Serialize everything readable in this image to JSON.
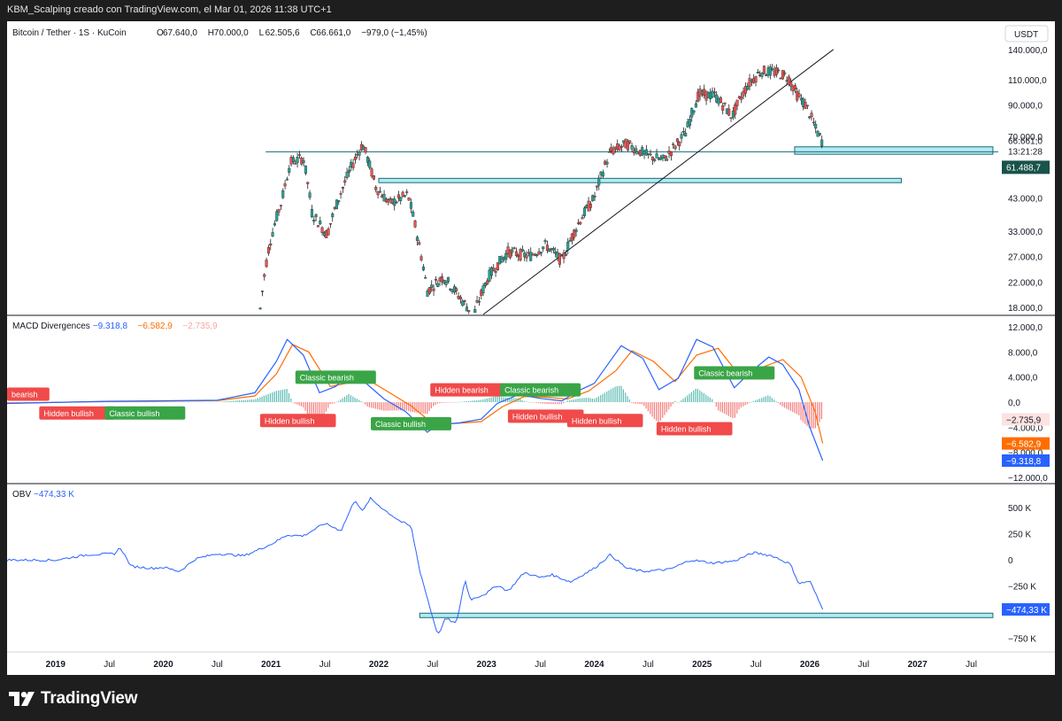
{
  "window": {
    "caption": "KBM_Scalping creado con TradingView.com, el Mar 01, 2026 11:38 UTC+1",
    "brand": "TradingView"
  },
  "colors": {
    "up_candle": "#26a69a",
    "down_candle": "#ef5350",
    "macd_line": "#2962ff",
    "signal_line": "#ff6d00",
    "hist_up": "#26a69a",
    "hist_down": "#ef5350",
    "obv_line": "#2962ff",
    "zone_fill": "#b2ebf2",
    "zone_border": "#1a6b78",
    "label_red": "#f04a4a",
    "label_green": "#3aa547",
    "last_price_tag": "#19534a"
  },
  "chart_data": [
    {
      "type": "candlestick",
      "pane": "price",
      "title": "Bitcoin / Tether · 1S · KuCoin",
      "ohlc_labels": [
        "O",
        "H",
        "L",
        "C"
      ],
      "ohlc_values": [
        "67.640,0",
        "70.000,0",
        "62.505,6",
        "66.661,0"
      ],
      "change": "−979,0 (−1,45%)",
      "currency_button": "USDT",
      "y_scale": "log",
      "ylim": [
        17000,
        150000
      ],
      "y_ticks": [
        140000,
        110000,
        90000,
        70000,
        43000,
        33000,
        27000,
        22000,
        18000
      ],
      "y_tick_labels": [
        "140.000,0",
        "110.000,0",
        "90.000,0",
        "70.000,0",
        "43.000,0",
        "33.000,0",
        "27.000,0",
        "22.000,0",
        "18.000,0"
      ],
      "x_range": [
        2018.55,
        2027.75
      ],
      "x_tick_labels": [
        "2019",
        "Jul",
        "2020",
        "Jul",
        "2021",
        "Jul",
        "2022",
        "Jul",
        "2023",
        "Jul",
        "2024",
        "Jul",
        "2025",
        "Jul",
        "2026",
        "Jul",
        "2027",
        "Jul"
      ],
      "x_ticks": [
        2019.0,
        2019.5,
        2020.0,
        2020.5,
        2021.0,
        2021.5,
        2022.0,
        2022.5,
        2023.0,
        2023.5,
        2024.0,
        2024.5,
        2025.0,
        2025.5,
        2026.0,
        2026.5,
        2027.0,
        2027.5
      ],
      "last_price": "66.661,0",
      "countdown": "13:21:28",
      "marker_price": "61.488,7",
      "price_path": [
        [
          2020.9,
          17800
        ],
        [
          2020.98,
          29000
        ],
        [
          2021.1,
          42000
        ],
        [
          2021.18,
          57000
        ],
        [
          2021.3,
          59000
        ],
        [
          2021.38,
          38000
        ],
        [
          2021.52,
          32000
        ],
        [
          2021.68,
          48000
        ],
        [
          2021.85,
          66000
        ],
        [
          2021.97,
          47000
        ],
        [
          2022.1,
          41000
        ],
        [
          2022.27,
          44000
        ],
        [
          2022.37,
          30000
        ],
        [
          2022.45,
          20500
        ],
        [
          2022.6,
          23000
        ],
        [
          2022.75,
          19500
        ],
        [
          2022.88,
          16800
        ],
        [
          2023.02,
          23000
        ],
        [
          2023.2,
          28000
        ],
        [
          2023.4,
          27000
        ],
        [
          2023.55,
          29500
        ],
        [
          2023.7,
          26000
        ],
        [
          2023.85,
          35000
        ],
        [
          2024.0,
          43000
        ],
        [
          2024.15,
          62000
        ],
        [
          2024.3,
          66000
        ],
        [
          2024.5,
          60000
        ],
        [
          2024.65,
          58000
        ],
        [
          2024.85,
          72000
        ],
        [
          2024.97,
          98000
        ],
        [
          2025.12,
          97000
        ],
        [
          2025.28,
          82000
        ],
        [
          2025.42,
          105000
        ],
        [
          2025.55,
          118000
        ],
        [
          2025.72,
          116000
        ],
        [
          2025.8,
          112000
        ],
        [
          2025.88,
          98000
        ],
        [
          2025.97,
          89000
        ],
        [
          2026.05,
          75000
        ],
        [
          2026.12,
          66661
        ]
      ],
      "trendline": [
        [
          2022.97,
          17000
        ],
        [
          2026.22,
          140000
        ]
      ],
      "horizontal_line": 62000,
      "zones": [
        {
          "x0": 2025.86,
          "x1": 2027.7,
          "y0": 60800,
          "y1": 64500
        },
        {
          "x0": 2022.0,
          "x1": 2026.85,
          "y0": 48500,
          "y1": 50200
        }
      ]
    },
    {
      "type": "line",
      "pane": "macd",
      "title": "MACD Divergences",
      "legend_values": [
        "−9.318,8",
        "−6.582,9",
        "−2.735,9"
      ],
      "ylim": [
        -12000,
        13000
      ],
      "y_ticks": [
        12000,
        8000,
        4000,
        0,
        -4000,
        -8000,
        -12000
      ],
      "y_tick_labels": [
        "12.000,0",
        "8.000,0",
        "4.000,0",
        "0,0",
        "−4.000,0",
        "−8.000,0",
        "−12.000,0"
      ],
      "series": [
        {
          "name": "MACD",
          "last": "−9.318,8",
          "points": [
            [
              2018.55,
              -200
            ],
            [
              2019.5,
              150
            ],
            [
              2019.9,
              200
            ],
            [
              2020.5,
              300
            ],
            [
              2020.85,
              1500
            ],
            [
              2021.05,
              6500
            ],
            [
              2021.15,
              10000
            ],
            [
              2021.3,
              7500
            ],
            [
              2021.45,
              1500
            ],
            [
              2021.6,
              2500
            ],
            [
              2021.72,
              4500
            ],
            [
              2021.85,
              3500
            ],
            [
              2022.05,
              500
            ],
            [
              2022.25,
              -1500
            ],
            [
              2022.45,
              -4800
            ],
            [
              2022.55,
              -3600
            ],
            [
              2022.75,
              -3300
            ],
            [
              2022.95,
              -2700
            ],
            [
              2023.1,
              -200
            ],
            [
              2023.3,
              1200
            ],
            [
              2023.5,
              600
            ],
            [
              2023.7,
              200
            ],
            [
              2023.85,
              1800
            ],
            [
              2024.0,
              3000
            ],
            [
              2024.15,
              6600
            ],
            [
              2024.25,
              9000
            ],
            [
              2024.45,
              7000
            ],
            [
              2024.6,
              2000
            ],
            [
              2024.78,
              3800
            ],
            [
              2024.95,
              10000
            ],
            [
              2025.1,
              8800
            ],
            [
              2025.3,
              2300
            ],
            [
              2025.45,
              4800
            ],
            [
              2025.62,
              7200
            ],
            [
              2025.75,
              6000
            ],
            [
              2025.9,
              2000
            ],
            [
              2026.0,
              -4000
            ],
            [
              2026.12,
              -9319
            ]
          ]
        },
        {
          "name": "Signal",
          "last": "−6.582,9",
          "points": [
            [
              2018.55,
              -150
            ],
            [
              2019.5,
              100
            ],
            [
              2019.9,
              150
            ],
            [
              2020.5,
              250
            ],
            [
              2020.85,
              1000
            ],
            [
              2021.05,
              4500
            ],
            [
              2021.2,
              9200
            ],
            [
              2021.35,
              8000
            ],
            [
              2021.55,
              2500
            ],
            [
              2021.7,
              3000
            ],
            [
              2021.9,
              3600
            ],
            [
              2022.1,
              1500
            ],
            [
              2022.3,
              -600
            ],
            [
              2022.5,
              -3400
            ],
            [
              2022.7,
              -3400
            ],
            [
              2022.95,
              -3100
            ],
            [
              2023.15,
              -700
            ],
            [
              2023.35,
              900
            ],
            [
              2023.55,
              800
            ],
            [
              2023.75,
              500
            ],
            [
              2023.95,
              1800
            ],
            [
              2024.2,
              5000
            ],
            [
              2024.35,
              8200
            ],
            [
              2024.55,
              6500
            ],
            [
              2024.75,
              3300
            ],
            [
              2024.95,
              7500
            ],
            [
              2025.15,
              8600
            ],
            [
              2025.35,
              4200
            ],
            [
              2025.55,
              5500
            ],
            [
              2025.75,
              6800
            ],
            [
              2025.92,
              4000
            ],
            [
              2026.05,
              -1500
            ],
            [
              2026.12,
              -6583
            ]
          ]
        }
      ],
      "histogram_last": "−2.735,9",
      "divergences": [
        {
          "text": "bearish",
          "kind": "bearish",
          "x": 2018.6,
          "y": 1200
        },
        {
          "text": "Hidden bullish",
          "kind": "bullish",
          "x": 2019.2,
          "y": -1800
        },
        {
          "text": "Classic bullish",
          "kind": "classic_bullish",
          "x": 2019.83,
          "y": -1800
        },
        {
          "text": "Hidden bullish",
          "kind": "bullish",
          "x": 2021.25,
          "y": -3000
        },
        {
          "text": "Classic bearish",
          "kind": "classic_bearish",
          "x": 2021.6,
          "y": 3900
        },
        {
          "text": "Classic bullish",
          "kind": "classic_bullish",
          "x": 2022.3,
          "y": -3500
        },
        {
          "text": "Hidden bearish",
          "kind": "bearish",
          "x": 2022.83,
          "y": 1900
        },
        {
          "text": "Classic bearish",
          "kind": "classic_bearish",
          "x": 2023.5,
          "y": 1900
        },
        {
          "text": "Hidden bullish",
          "kind": "bullish",
          "x": 2023.55,
          "y": -2300
        },
        {
          "text": "Hidden bullish",
          "kind": "bullish",
          "x": 2024.1,
          "y": -3000
        },
        {
          "text": "Hidden bullish",
          "kind": "bullish",
          "x": 2024.93,
          "y": -4300
        },
        {
          "text": "Classic bearish",
          "kind": "classic_bearish",
          "x": 2025.3,
          "y": 4600
        }
      ]
    },
    {
      "type": "line",
      "pane": "obv",
      "title": "OBV",
      "legend_value": "−474,33 K",
      "ylim": [
        -830,
        680
      ],
      "y_ticks": [
        500,
        250,
        0,
        -250,
        -750
      ],
      "y_tick_labels": [
        "500 K",
        "250 K",
        "0",
        "−250 K",
        "−750 K"
      ],
      "series": [
        {
          "name": "OBV",
          "last": "−474,33 K",
          "points": [
            [
              2018.55,
              0
            ],
            [
              2019.0,
              -2
            ],
            [
              2019.3,
              50
            ],
            [
              2019.55,
              60
            ],
            [
              2019.6,
              120
            ],
            [
              2019.7,
              -60
            ],
            [
              2019.9,
              -80
            ],
            [
              2020.0,
              -70
            ],
            [
              2020.15,
              -110
            ],
            [
              2020.3,
              10
            ],
            [
              2020.5,
              60
            ],
            [
              2020.75,
              40
            ],
            [
              2021.0,
              150
            ],
            [
              2021.15,
              240
            ],
            [
              2021.3,
              230
            ],
            [
              2021.5,
              350
            ],
            [
              2021.65,
              280
            ],
            [
              2021.78,
              580
            ],
            [
              2021.85,
              460
            ],
            [
              2021.92,
              590
            ],
            [
              2022.05,
              480
            ],
            [
              2022.2,
              370
            ],
            [
              2022.3,
              320
            ],
            [
              2022.38,
              -100
            ],
            [
              2022.5,
              -550
            ],
            [
              2022.55,
              -720
            ],
            [
              2022.62,
              -560
            ],
            [
              2022.72,
              -610
            ],
            [
              2022.76,
              -400
            ],
            [
              2022.8,
              -190
            ],
            [
              2022.85,
              -380
            ],
            [
              2023.0,
              -320
            ],
            [
              2023.1,
              -240
            ],
            [
              2023.2,
              -300
            ],
            [
              2023.35,
              -120
            ],
            [
              2023.5,
              -170
            ],
            [
              2023.6,
              -140
            ],
            [
              2023.78,
              -210
            ],
            [
              2024.0,
              -80
            ],
            [
              2024.15,
              50
            ],
            [
              2024.3,
              -80
            ],
            [
              2024.45,
              -110
            ],
            [
              2024.7,
              -90
            ],
            [
              2024.9,
              0
            ],
            [
              2025.1,
              -30
            ],
            [
              2025.3,
              -10
            ],
            [
              2025.48,
              70
            ],
            [
              2025.65,
              40
            ],
            [
              2025.82,
              -40
            ],
            [
              2025.9,
              -230
            ],
            [
              2026.0,
              -200
            ],
            [
              2026.12,
              -474
            ]
          ]
        }
      ],
      "zone": {
        "x0": 2022.38,
        "x1": 2027.7,
        "y0": -530,
        "y1": -510
      }
    }
  ]
}
